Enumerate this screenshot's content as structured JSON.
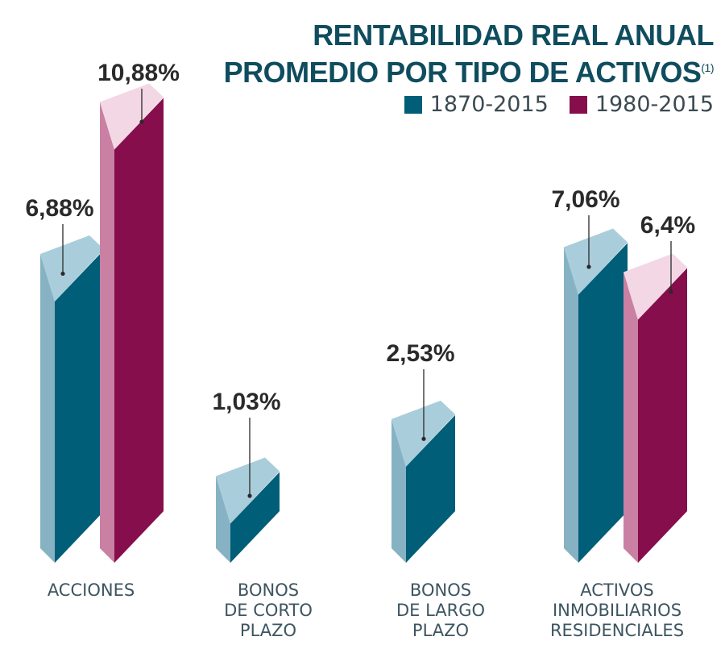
{
  "header": {
    "title_line1": "RENTABILIDAD REAL ANUAL",
    "title_line2": "PROMEDIO POR TIPO DE ACTIVOS",
    "footnote": "(1)"
  },
  "legend": [
    {
      "label": "1870-2015",
      "color": "#005e78"
    },
    {
      "label": "1980-2015",
      "color": "#860e4c"
    }
  ],
  "chart_data": {
    "type": "bar",
    "title": "RENTABILIDAD REAL ANUAL PROMEDIO POR TIPO DE ACTIVOS",
    "categories": [
      [
        "ACCIONES"
      ],
      [
        "BONOS",
        "DE CORTO",
        "PLAZO"
      ],
      [
        "BONOS",
        "DE LARGO",
        "PLAZO"
      ],
      [
        "ACTIVOS",
        "INMOBILIARIOS",
        "RESIDENCIALES"
      ]
    ],
    "series": [
      {
        "name": "1870-2015",
        "values": [
          6.88,
          1.03,
          2.53,
          7.06
        ],
        "labels": [
          "6,88%",
          "1,03%",
          "2,53%",
          "7,06%"
        ]
      },
      {
        "name": "1980-2015",
        "values": [
          10.88,
          null,
          null,
          6.4
        ],
        "labels": [
          "10,88%",
          "",
          "",
          "6,4%"
        ]
      }
    ],
    "colors": {
      "1870-2015": {
        "front": "#005e78",
        "side": "#86b2c4",
        "top": "#a9cddb"
      },
      "1980-2015": {
        "front": "#860e4c",
        "side": "#c980a3",
        "top": "#f3d7e5"
      }
    }
  }
}
